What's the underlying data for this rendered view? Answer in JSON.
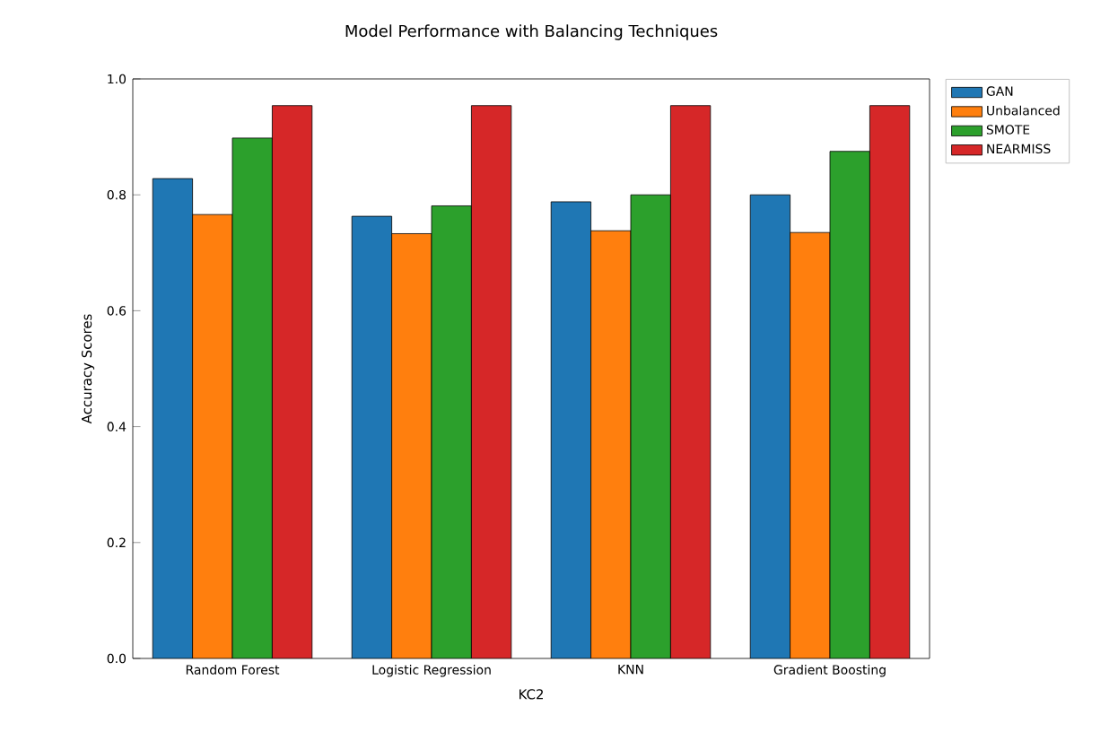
{
  "chart_data": {
    "type": "bar",
    "title": "Model Performance with Balancing Techniques",
    "xlabel": "KC2",
    "ylabel": "Accuracy Scores",
    "categories": [
      "Random Forest",
      "Logistic Regression",
      "KNN",
      "Gradient Boosting"
    ],
    "series": [
      {
        "name": "GAN",
        "color": "#1f77b4",
        "values": [
          0.828,
          0.763,
          0.788,
          0.8
        ]
      },
      {
        "name": "Unbalanced",
        "color": "#ff7f0e",
        "values": [
          0.766,
          0.733,
          0.738,
          0.735
        ]
      },
      {
        "name": "SMOTE",
        "color": "#2ca02c",
        "values": [
          0.898,
          0.781,
          0.8,
          0.875
        ]
      },
      {
        "name": "NEARMISS",
        "color": "#d62728",
        "values": [
          0.954,
          0.954,
          0.954,
          0.954
        ]
      }
    ],
    "ylim": [
      0,
      1.0
    ],
    "yticks": [
      {
        "value": 0,
        "label": "0.0"
      },
      0.2,
      0.4,
      0.6,
      0.8,
      {
        "value": 1,
        "label": "1.0"
      }
    ],
    "grid": false,
    "legend": "top right"
  }
}
